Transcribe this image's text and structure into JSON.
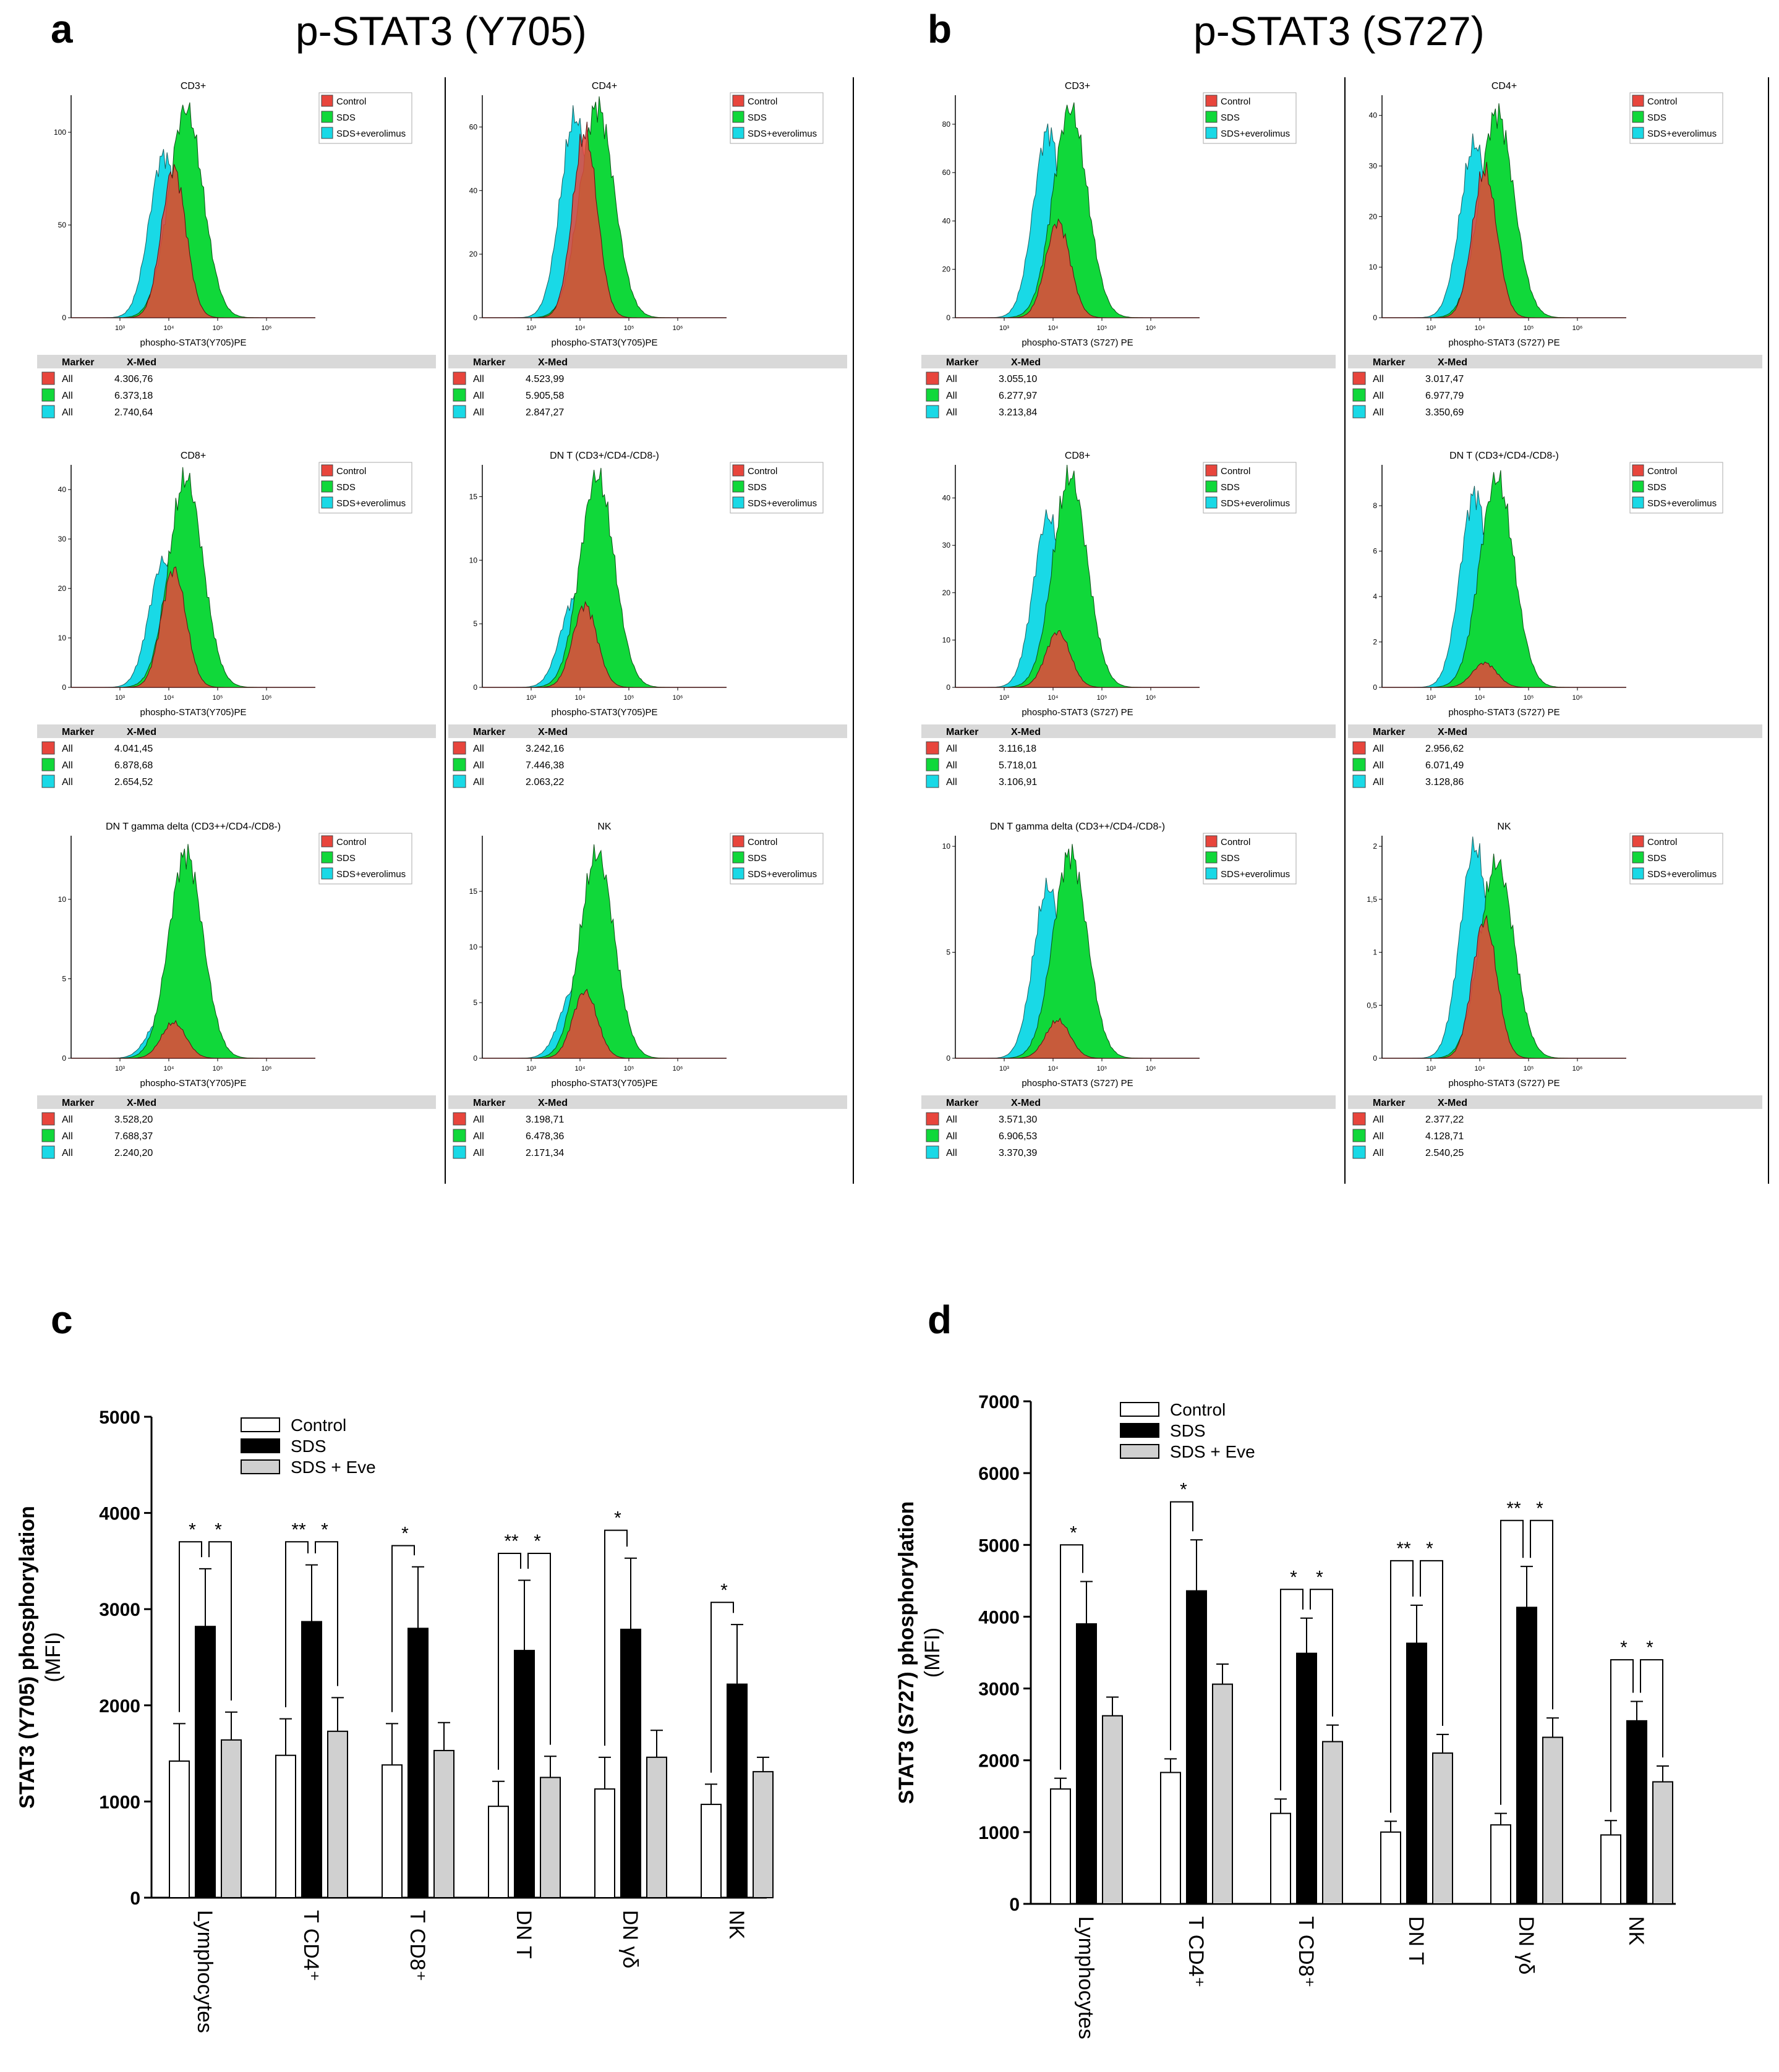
{
  "figure": {
    "panel_a": {
      "letter": "a",
      "title": "p-STAT3 (Y705)"
    },
    "panel_b": {
      "letter": "b",
      "title": "p-STAT3 (S727)"
    },
    "panel_c": {
      "letter": "c"
    },
    "panel_d": {
      "letter": "d"
    }
  },
  "colors": {
    "control": "#e8453c",
    "sds": "#10d83a",
    "eve": "#19d9e6",
    "marker_bar": "#d9d9d9"
  },
  "chart_data": [
    {
      "type": "histogram-grid",
      "id": "a",
      "legend": [
        "Control",
        "SDS",
        "SDS+everolimus"
      ],
      "marker_header": [
        "Marker",
        "X-Med"
      ],
      "marker_label": "All",
      "x_ticks": [
        "10³",
        "10⁴",
        "10⁵",
        "10⁶"
      ],
      "xlabel_default": "phospho-STAT3(Y705)PE",
      "panels": [
        {
          "title": "CD3+",
          "yticks": [
            "0",
            "50",
            "100"
          ],
          "ymax": 120,
          "peaks": {
            "control": 0.67,
            "sds": 0.94,
            "eve": 0.73
          },
          "xlabel": "phospho-STAT3(Y705)PE",
          "medians": [
            "4.306,76",
            "6.373,18",
            "2.740,64"
          ]
        },
        {
          "title": "CD4+",
          "yticks": [
            "0",
            "20",
            "40",
            "60"
          ],
          "ymax": 70,
          "peaks": {
            "control": 0.83,
            "sds": 0.95,
            "eve": 0.9
          },
          "xlabel": "phospho-STAT3(Y705)PE",
          "medians": [
            "4.523,99",
            "5.905,58",
            "2.847,27"
          ]
        },
        {
          "title": "CD8+",
          "yticks": [
            "0",
            "10",
            "20",
            "30",
            "40"
          ],
          "ymax": 45,
          "peaks": {
            "control": 0.53,
            "sds": 0.94,
            "eve": 0.57
          },
          "xlabel": "phospho-STAT3(Y705)PE",
          "medians": [
            "4.041,45",
            "6.878,68",
            "2.654,52"
          ]
        },
        {
          "title": "DN T (CD3+/CD4-/CD8-)",
          "yticks": [
            "0",
            "5",
            "10",
            "15"
          ],
          "ymax": 17.5,
          "peaks": {
            "control": 0.37,
            "sds": 0.95,
            "eve": 0.4
          },
          "xlabel": "phospho-STAT3(Y705)PE",
          "medians": [
            "3.242,16",
            "7.446,38",
            "2.063,22"
          ]
        },
        {
          "title": "DN T gamma delta (CD3++/CD4-/CD8-)",
          "yticks": [
            "0",
            "5",
            "10"
          ],
          "ymax": 14,
          "peaks": {
            "control": 0.16,
            "sds": 0.92,
            "eve": 0.2
          },
          "xlabel": "phospho-STAT3(Y705)PE",
          "medians": [
            "3.528,20",
            "7.688,37",
            "2.240,20"
          ]
        },
        {
          "title": "NK",
          "yticks": [
            "0",
            "5",
            "10",
            "15"
          ],
          "ymax": 20,
          "peaks": {
            "control": 0.3,
            "sds": 0.92,
            "eve": 0.32
          },
          "xlabel": "phospho-STAT3(Y705)PE",
          "medians": [
            "3.198,71",
            "6.478,36",
            "2.171,34"
          ]
        }
      ]
    },
    {
      "type": "histogram-grid",
      "id": "b",
      "legend": [
        "Control",
        "SDS",
        "SDS+everolimus"
      ],
      "marker_header": [
        "Marker",
        "X-Med"
      ],
      "marker_label": "All",
      "x_ticks": [
        "10³",
        "10⁴",
        "10⁵",
        "10⁶"
      ],
      "xlabel_default": "phospho-STAT3 (S727) PE",
      "panels": [
        {
          "title": "CD3+",
          "yticks": [
            "0",
            "20",
            "40",
            "60",
            "80"
          ],
          "ymax": 92,
          "peaks": {
            "control": 0.43,
            "sds": 0.94,
            "eve": 0.84
          },
          "xlabel": "phospho-STAT3 (S727) PE",
          "medians": [
            "3.055,10",
            "6.277,97",
            "3.213,84"
          ]
        },
        {
          "title": "CD4+",
          "yticks": [
            "0",
            "10",
            "20",
            "30",
            "40"
          ],
          "ymax": 44,
          "peaks": {
            "control": 0.66,
            "sds": 0.92,
            "eve": 0.78
          },
          "xlabel": "phospho-STAT3 (S727) PE",
          "medians": [
            "3.017,47",
            "6.977,79",
            "3.350,69"
          ]
        },
        {
          "title": "CD8+",
          "yticks": [
            "0",
            "10",
            "20",
            "30",
            "40"
          ],
          "ymax": 47,
          "peaks": {
            "control": 0.25,
            "sds": 0.95,
            "eve": 0.77
          },
          "xlabel": "phospho-STAT3 (S727) PE",
          "medians": [
            "3.116,18",
            "5.718,01",
            "3.106,91"
          ]
        },
        {
          "title": "DN T (CD3+/CD4-/CD8-)",
          "yticks": [
            "0",
            "2",
            "4",
            "6",
            "8"
          ],
          "ymax": 9.8,
          "peaks": {
            "control": 0.11,
            "sds": 0.94,
            "eve": 0.87
          },
          "xlabel": "phospho-STAT3 (S727) PE",
          "medians": [
            "2.956,62",
            "6.071,49",
            "3.128,86"
          ]
        },
        {
          "title": "DN T gamma delta (CD3++/CD4-/CD8-)",
          "yticks": [
            "0",
            "5",
            "10"
          ],
          "ymax": 10.5,
          "peaks": {
            "control": 0.17,
            "sds": 0.92,
            "eve": 0.77
          },
          "xlabel": "phospho-STAT3 (S727) PE",
          "medians": [
            "3.571,30",
            "6.906,53",
            "3.370,39"
          ]
        },
        {
          "title": "NK",
          "yticks": [
            "0",
            "0,5",
            "1",
            "1,5",
            "2"
          ],
          "ymax": 2.1,
          "peaks": {
            "control": 0.62,
            "sds": 0.88,
            "eve": 0.95
          },
          "xlabel": "phospho-STAT3 (S727) PE",
          "medians": [
            "2.377,22",
            "4.128,71",
            "2.540,25"
          ]
        }
      ]
    },
    {
      "type": "bar",
      "id": "c",
      "ylabel": "STAT3 (Y705) phosphorylation",
      "ylabel2": "(MFI)",
      "ylim": [
        0,
        5000
      ],
      "yticks": [
        0,
        1000,
        2000,
        3000,
        4000,
        5000
      ],
      "categories": [
        "Lymphocytes",
        "T CD4⁺",
        "T CD8⁺",
        "DN T",
        "DN γδ",
        "NK"
      ],
      "series": [
        {
          "name": "Control",
          "values": [
            1420,
            1480,
            1380,
            950,
            1130,
            970
          ],
          "errors": [
            390,
            380,
            430,
            260,
            330,
            210
          ]
        },
        {
          "name": "SDS",
          "values": [
            2820,
            2870,
            2800,
            2570,
            2790,
            2220
          ],
          "errors": [
            600,
            590,
            640,
            730,
            740,
            620
          ]
        },
        {
          "name": "SDS + Eve",
          "values": [
            1640,
            1730,
            1530,
            1250,
            1460,
            1310
          ],
          "errors": [
            290,
            350,
            290,
            220,
            280,
            150
          ]
        }
      ],
      "significance": [
        {
          "category": 0,
          "pair": [
            0,
            1
          ],
          "label": "*",
          "y": 3700
        },
        {
          "category": 0,
          "pair": [
            1,
            2
          ],
          "label": "*",
          "y": 3700
        },
        {
          "category": 1,
          "pair": [
            0,
            1
          ],
          "label": "**",
          "y": 3700
        },
        {
          "category": 1,
          "pair": [
            1,
            2
          ],
          "label": "*",
          "y": 3700
        },
        {
          "category": 2,
          "pair": [
            0,
            1
          ],
          "label": "*",
          "y": 3660
        },
        {
          "category": 3,
          "pair": [
            0,
            1
          ],
          "label": "**",
          "y": 3580
        },
        {
          "category": 3,
          "pair": [
            1,
            2
          ],
          "label": "*",
          "y": 3580
        },
        {
          "category": 4,
          "pair": [
            0,
            1
          ],
          "label": "*",
          "y": 3820
        },
        {
          "category": 5,
          "pair": [
            0,
            1
          ],
          "label": "*",
          "y": 3070
        }
      ]
    },
    {
      "type": "bar",
      "id": "d",
      "ylabel": "STAT3 (S727) phosphorylation",
      "ylabel2": "(MFI)",
      "ylim": [
        0,
        7000
      ],
      "yticks": [
        0,
        1000,
        2000,
        3000,
        4000,
        5000,
        6000,
        7000
      ],
      "categories": [
        "Lymphocytes",
        "T CD4⁺",
        "T CD8⁺",
        "DN T",
        "DN γδ",
        "NK"
      ],
      "series": [
        {
          "name": "Control",
          "values": [
            1600,
            1830,
            1260,
            1000,
            1100,
            960
          ],
          "errors": [
            150,
            190,
            200,
            150,
            160,
            200
          ]
        },
        {
          "name": "SDS",
          "values": [
            3900,
            4360,
            3490,
            3630,
            4130,
            2550
          ],
          "errors": [
            590,
            710,
            490,
            530,
            570,
            270
          ]
        },
        {
          "name": "SDS + Eve",
          "values": [
            2620,
            3060,
            2260,
            2100,
            2320,
            1700
          ],
          "errors": [
            260,
            280,
            230,
            260,
            270,
            220
          ]
        }
      ],
      "significance": [
        {
          "category": 0,
          "pair": [
            0,
            1
          ],
          "label": "*",
          "y": 5000
        },
        {
          "category": 1,
          "pair": [
            0,
            1
          ],
          "label": "*",
          "y": 5600
        },
        {
          "category": 2,
          "pair": [
            0,
            1
          ],
          "label": "*",
          "y": 4380
        },
        {
          "category": 2,
          "pair": [
            1,
            2
          ],
          "label": "*",
          "y": 4380
        },
        {
          "category": 3,
          "pair": [
            0,
            1
          ],
          "label": "**",
          "y": 4780
        },
        {
          "category": 3,
          "pair": [
            1,
            2
          ],
          "label": "*",
          "y": 4780
        },
        {
          "category": 4,
          "pair": [
            0,
            1
          ],
          "label": "**",
          "y": 5340
        },
        {
          "category": 4,
          "pair": [
            1,
            2
          ],
          "label": "*",
          "y": 5340
        },
        {
          "category": 5,
          "pair": [
            0,
            1
          ],
          "label": "*",
          "y": 3400
        },
        {
          "category": 5,
          "pair": [
            1,
            2
          ],
          "label": "*",
          "y": 3400
        }
      ]
    }
  ]
}
